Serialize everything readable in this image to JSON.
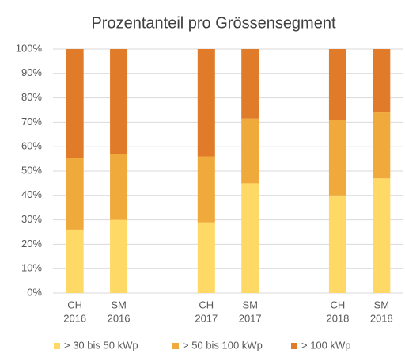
{
  "chart_data": {
    "type": "stacked_bar",
    "title": "Prozentanteil pro Grössensegment",
    "categories": [
      [
        "CH",
        "2016"
      ],
      [
        "SM",
        "2016"
      ],
      null,
      [
        "CH",
        "2017"
      ],
      [
        "SM",
        "2017"
      ],
      null,
      [
        "CH",
        "2018"
      ],
      [
        "SM",
        "2018"
      ]
    ],
    "series": [
      {
        "name": "> 30 bis 50 kWp",
        "color": "#ffd966",
        "values": [
          26,
          30,
          null,
          29,
          45,
          null,
          40,
          47
        ]
      },
      {
        "name": "> 50 bis 100 kWp",
        "color": "#f0aa3c",
        "values": [
          29.5,
          27,
          null,
          27,
          26.5,
          null,
          31,
          27
        ]
      },
      {
        "name": "> 100 kWp",
        "color": "#e07b2a",
        "values": [
          44.5,
          43,
          null,
          44,
          28.5,
          null,
          29,
          26
        ]
      }
    ],
    "ylim": [
      0,
      100
    ],
    "yticks": [
      {
        "value": 0,
        "label": "0%"
      },
      {
        "value": 10,
        "label": "10%"
      },
      {
        "value": 20,
        "label": "20%"
      },
      {
        "value": 30,
        "label": "30%"
      },
      {
        "value": 40,
        "label": "40%"
      },
      {
        "value": 50,
        "label": "50%"
      },
      {
        "value": 60,
        "label": "60%"
      },
      {
        "value": 70,
        "label": "70%"
      },
      {
        "value": 80,
        "label": "80%"
      },
      {
        "value": 90,
        "label": "90%"
      },
      {
        "value": 100,
        "label": "100%"
      }
    ],
    "grid": true,
    "legend": "bottom"
  }
}
